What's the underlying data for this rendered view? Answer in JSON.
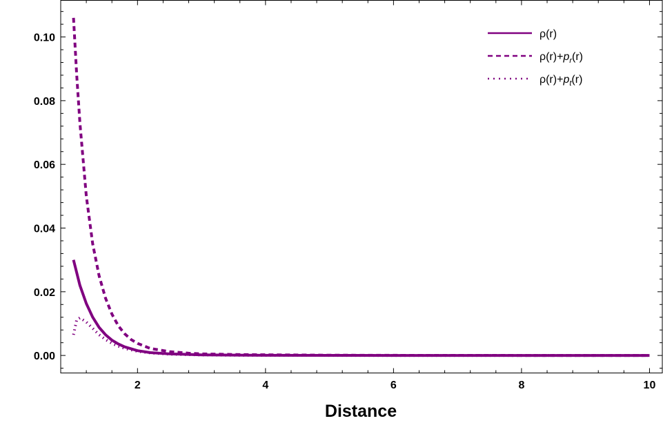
{
  "chart_data": {
    "type": "line",
    "title": "",
    "xlabel": "Distance",
    "ylabel": "",
    "xlim": [
      0.8,
      10.2
    ],
    "ylim": [
      -0.0055,
      0.1115
    ],
    "xticks": [
      2,
      4,
      6,
      8,
      10
    ],
    "yticks": [
      0.0,
      0.02,
      0.04,
      0.06,
      0.08,
      0.1
    ],
    "xtick_labels": [
      "2",
      "4",
      "6",
      "8",
      "10"
    ],
    "ytick_labels": [
      "0.00",
      "0.02",
      "0.04",
      "0.06",
      "0.08",
      "0.10"
    ],
    "grid": false,
    "legend_position": "top-right",
    "legend": [
      {
        "name": "ρ(r)",
        "style": "solid"
      },
      {
        "name": "ρ(r)+p_r(r)",
        "style": "dashed",
        "main": "ρ(r)+",
        "var": "p",
        "sub": "r",
        "tail": "(r)"
      },
      {
        "name": "ρ(r)+p_t(r)",
        "style": "dotted",
        "main": "ρ(r)+",
        "var": "p",
        "sub": "t",
        "tail": "(r)"
      }
    ],
    "color": "#800080",
    "series": [
      {
        "name": "ρ(r)",
        "style": "solid",
        "x": [
          1.0,
          1.1,
          1.2,
          1.3,
          1.4,
          1.5,
          1.6,
          1.7,
          1.8,
          2.0,
          2.2,
          2.5,
          3.0,
          3.5,
          4.0,
          5.0,
          6.0,
          7.0,
          8.0,
          9.0,
          10.0
        ],
        "y": [
          0.03,
          0.022,
          0.0163,
          0.012,
          0.0088,
          0.0065,
          0.0048,
          0.0036,
          0.0027,
          0.0015,
          0.0009,
          0.0005,
          0.0002,
          0.0001,
          5e-05,
          2e-05,
          1e-05,
          5e-06,
          0.0,
          0.0,
          0.0
        ]
      },
      {
        "name": "ρ(r)+p_r(r)",
        "style": "dashed",
        "x": [
          1.0,
          1.05,
          1.1,
          1.2,
          1.3,
          1.4,
          1.5,
          1.6,
          1.7,
          1.8,
          1.9,
          2.0,
          2.2,
          2.5,
          2.8,
          3.0,
          3.5,
          4.0,
          5.0,
          6.0,
          7.0,
          8.0,
          9.0,
          10.0
        ],
        "y": [
          0.106,
          0.088,
          0.073,
          0.05,
          0.035,
          0.025,
          0.018,
          0.013,
          0.0093,
          0.0068,
          0.005,
          0.0038,
          0.0022,
          0.0012,
          0.0007,
          0.0005,
          0.0003,
          0.0002,
          8e-05,
          4e-05,
          2e-05,
          1e-05,
          0.0,
          0.0
        ]
      },
      {
        "name": "ρ(r)+p_t(r)",
        "style": "dotted",
        "x": [
          1.0,
          1.05,
          1.1,
          1.2,
          1.3,
          1.4,
          1.5,
          1.6,
          1.7,
          1.8,
          2.0,
          2.2,
          2.5,
          3.0,
          3.5,
          4.0,
          5.0,
          6.0,
          7.0,
          8.0,
          9.0,
          10.0
        ],
        "y": [
          0.0065,
          0.0112,
          0.0118,
          0.0105,
          0.0085,
          0.0065,
          0.005,
          0.0038,
          0.0029,
          0.0022,
          0.0013,
          0.0008,
          0.0004,
          0.00015,
          7e-05,
          3e-05,
          1e-05,
          0.0,
          0.0,
          0.0,
          0.0,
          0.0
        ]
      }
    ]
  }
}
